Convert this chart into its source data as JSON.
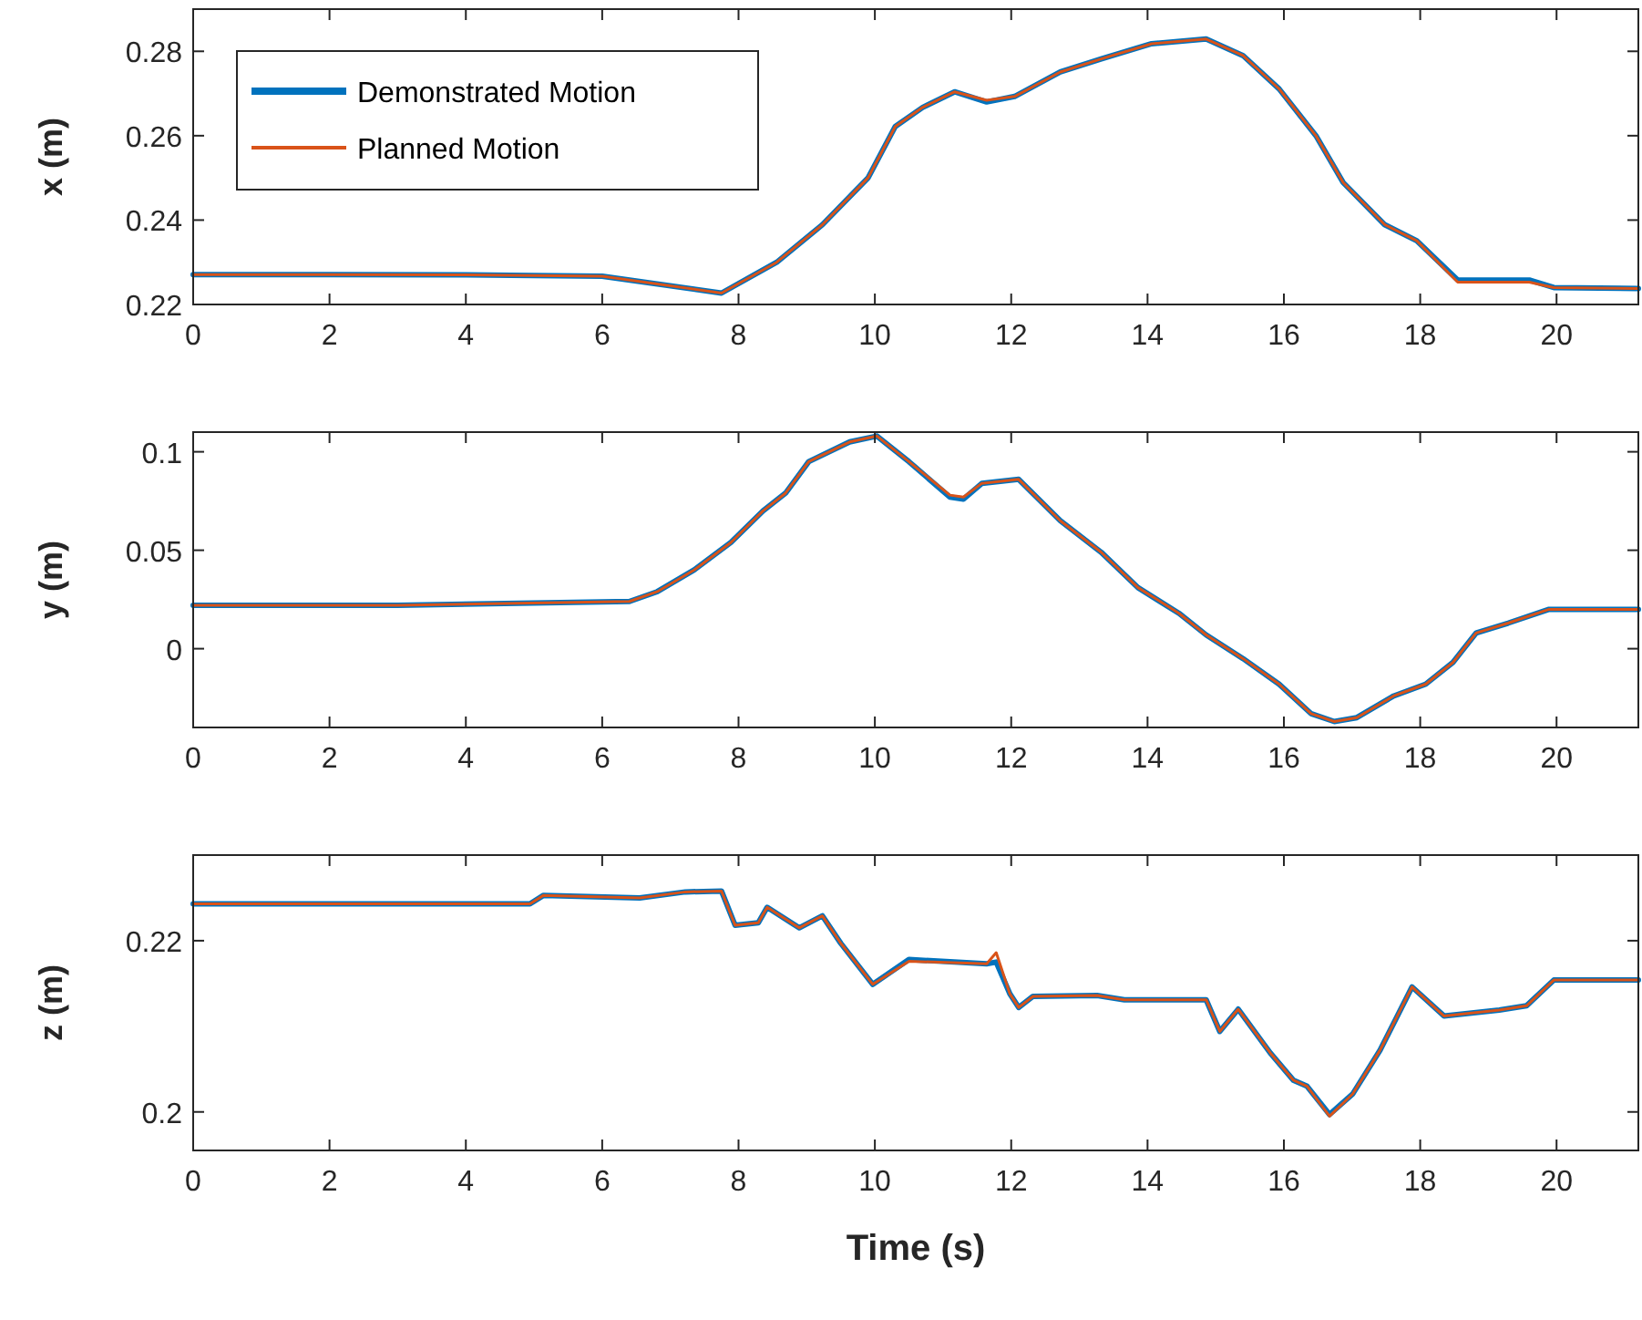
{
  "chart_data": [
    {
      "type": "line",
      "ylabel": "x (m)",
      "xlim": [
        0,
        21.2
      ],
      "ylim": [
        0.22,
        0.29
      ],
      "xticks": [
        0,
        2,
        4,
        6,
        8,
        10,
        12,
        14,
        16,
        18,
        20
      ],
      "yticks": [
        0.22,
        0.24,
        0.26,
        0.28
      ],
      "legend": "top left",
      "grid": false,
      "x": [
        0,
        2,
        4,
        6,
        7.75,
        8.56,
        9.23,
        9.9,
        10.3,
        10.7,
        11.17,
        11.64,
        12.05,
        12.72,
        13.32,
        14.06,
        14.86,
        15.4,
        15.93,
        16.47,
        16.87,
        17.48,
        17.95,
        18.55,
        19.0,
        19.6,
        19.96,
        21.2
      ],
      "series": [
        {
          "name": "Demonstrated Motion",
          "color": "#0072bd",
          "values": [
            0.2271,
            0.2271,
            0.227,
            0.2267,
            0.2227,
            0.23,
            0.2389,
            0.25,
            0.2622,
            0.2667,
            0.2704,
            0.268,
            0.2693,
            0.2751,
            0.2782,
            0.2818,
            0.2829,
            0.279,
            0.2711,
            0.26,
            0.2489,
            0.2389,
            0.2351,
            0.2258,
            0.2258,
            0.2258,
            0.224,
            0.2238
          ]
        },
        {
          "name": "Planned Motion",
          "color": "#d95319",
          "values": [
            0.2271,
            0.2271,
            0.227,
            0.2267,
            0.2227,
            0.23,
            0.2389,
            0.25,
            0.2622,
            0.2667,
            0.2704,
            0.2684,
            0.2693,
            0.2751,
            0.2782,
            0.2818,
            0.2829,
            0.279,
            0.2711,
            0.26,
            0.2489,
            0.2389,
            0.2351,
            0.2253,
            0.2253,
            0.2253,
            0.224,
            0.2238
          ]
        }
      ]
    },
    {
      "type": "line",
      "ylabel": "y (m)",
      "xlim": [
        0,
        21.2
      ],
      "ylim": [
        -0.04,
        0.11
      ],
      "xticks": [
        0,
        2,
        4,
        6,
        8,
        10,
        12,
        14,
        16,
        18,
        20
      ],
      "yticks": [
        0,
        0.05,
        0.1
      ],
      "grid": false,
      "x": [
        0,
        3,
        6.4,
        6.81,
        7.35,
        7.89,
        8.36,
        8.69,
        9.03,
        9.63,
        10.03,
        10.5,
        11.1,
        11.3,
        11.57,
        12.11,
        12.72,
        13.32,
        13.86,
        14.46,
        14.86,
        15.4,
        15.93,
        16.4,
        16.74,
        17.07,
        17.61,
        18.08,
        18.48,
        18.82,
        19.29,
        19.89,
        21.2
      ],
      "series": [
        {
          "color": "#0072bd",
          "values": [
            0.022,
            0.022,
            0.024,
            0.029,
            0.04,
            0.054,
            0.07,
            0.079,
            0.095,
            0.105,
            0.108,
            0.095,
            0.077,
            0.076,
            0.084,
            0.086,
            0.065,
            0.049,
            0.031,
            0.018,
            0.007,
            -0.005,
            -0.018,
            -0.033,
            -0.037,
            -0.035,
            -0.024,
            -0.018,
            -0.007,
            0.008,
            0.013,
            0.02,
            0.02
          ]
        },
        {
          "color": "#d95319",
          "values": [
            0.022,
            0.022,
            0.024,
            0.029,
            0.04,
            0.054,
            0.07,
            0.079,
            0.095,
            0.105,
            0.108,
            0.095,
            0.078,
            0.077,
            0.084,
            0.086,
            0.065,
            0.049,
            0.031,
            0.018,
            0.007,
            -0.005,
            -0.018,
            -0.033,
            -0.037,
            -0.035,
            -0.024,
            -0.018,
            -0.007,
            0.008,
            0.013,
            0.02,
            0.02
          ]
        }
      ]
    },
    {
      "type": "line",
      "ylabel": "z (m)",
      "xlabel": "Time (s)",
      "xlim": [
        0,
        21.2
      ],
      "ylim": [
        0.1955,
        0.23
      ],
      "xticks": [
        0,
        2,
        4,
        6,
        8,
        10,
        12,
        14,
        16,
        18,
        20
      ],
      "yticks": [
        0.2,
        0.22
      ],
      "grid": false,
      "x": [
        0,
        2.5,
        4.94,
        5.14,
        6.55,
        7.22,
        7.75,
        7.95,
        8.29,
        8.42,
        8.89,
        9.23,
        9.5,
        9.97,
        10.5,
        11.64,
        11.78,
        11.98,
        12.11,
        12.32,
        13.26,
        13.66,
        14.86,
        15.06,
        15.33,
        15.8,
        16.14,
        16.34,
        16.67,
        17.01,
        17.41,
        17.88,
        18.35,
        19.16,
        19.56,
        19.96,
        21.2
      ],
      "series": [
        {
          "color": "#0072bd",
          "values": [
            0.2243,
            0.2243,
            0.2243,
            0.2253,
            0.225,
            0.2257,
            0.2258,
            0.2218,
            0.2221,
            0.2239,
            0.2215,
            0.2229,
            0.2197,
            0.2149,
            0.2178,
            0.2173,
            0.2175,
            0.2138,
            0.2122,
            0.2135,
            0.2136,
            0.2131,
            0.2131,
            0.2094,
            0.212,
            0.2069,
            0.2037,
            0.203,
            0.1997,
            0.2021,
            0.2072,
            0.2146,
            0.2112,
            0.2119,
            0.2124,
            0.2154,
            0.2154
          ]
        },
        {
          "color": "#d95319",
          "values": [
            0.2243,
            0.2243,
            0.2243,
            0.2253,
            0.225,
            0.2257,
            0.2258,
            0.2218,
            0.2221,
            0.2239,
            0.2215,
            0.2229,
            0.2197,
            0.2149,
            0.2176,
            0.2173,
            0.2186,
            0.2138,
            0.2122,
            0.2135,
            0.2136,
            0.2131,
            0.2131,
            0.2094,
            0.212,
            0.2069,
            0.2037,
            0.203,
            0.1995,
            0.2021,
            0.2072,
            0.2146,
            0.2112,
            0.2119,
            0.2124,
            0.2154,
            0.2154
          ]
        }
      ]
    }
  ]
}
